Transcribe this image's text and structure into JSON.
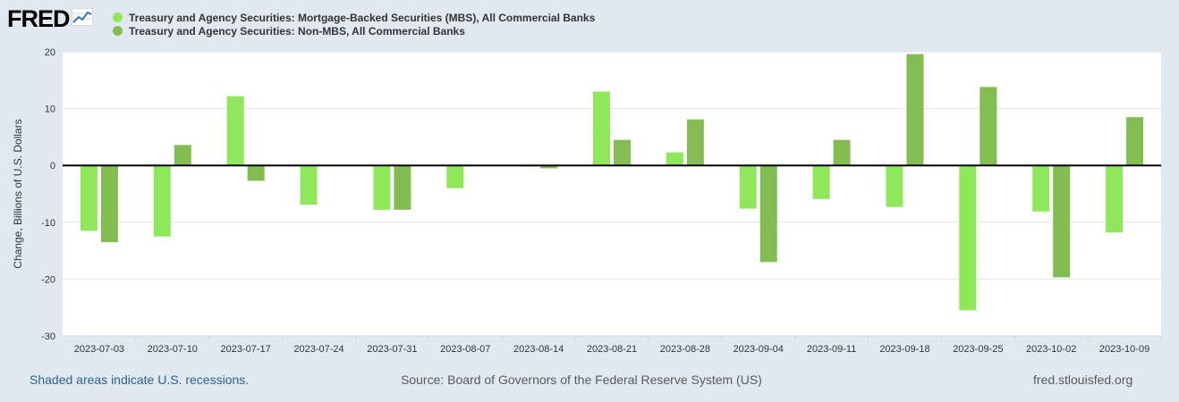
{
  "header": {
    "logo_text": "FRED",
    "logo_icon": "line-chart-icon"
  },
  "chart_data": {
    "type": "bar",
    "categories": [
      "2023-07-03",
      "2023-07-10",
      "2023-07-17",
      "2023-07-24",
      "2023-07-31",
      "2023-08-07",
      "2023-08-14",
      "2023-08-21",
      "2023-08-28",
      "2023-09-04",
      "2023-09-11",
      "2023-09-18",
      "2023-09-25",
      "2023-10-02",
      "2023-10-09"
    ],
    "series": [
      {
        "name": "Treasury and Agency Securities: Mortgage-Backed Securities (MBS), All Commercial Banks",
        "color": "#8fe85a",
        "values": [
          -11.5,
          -12.5,
          12.2,
          -6.9,
          -7.8,
          -4.0,
          -0.2,
          13.0,
          2.3,
          -7.6,
          -5.9,
          -7.3,
          -25.5,
          -8.1,
          -11.8
        ]
      },
      {
        "name": "Treasury and Agency Securities: Non-MBS, All Commercial Banks",
        "color": "#83bd52",
        "values": [
          -13.5,
          3.6,
          -2.7,
          null,
          -7.8,
          null,
          -0.5,
          4.5,
          8.1,
          -17.0,
          4.5,
          19.6,
          13.8,
          -19.7,
          8.5
        ]
      }
    ],
    "ylabel": "Change, Billions of U.S. Dollars",
    "ylim": [
      -30,
      20
    ],
    "yticks": [
      20,
      10,
      0,
      -10,
      -20,
      -30
    ],
    "grid": true
  },
  "footer": {
    "recession_note": "Shaded areas indicate U.S. recessions.",
    "source": "Source: Board of Governors of the Federal Reserve System (US)",
    "site": "fred.stlouisfed.org"
  }
}
